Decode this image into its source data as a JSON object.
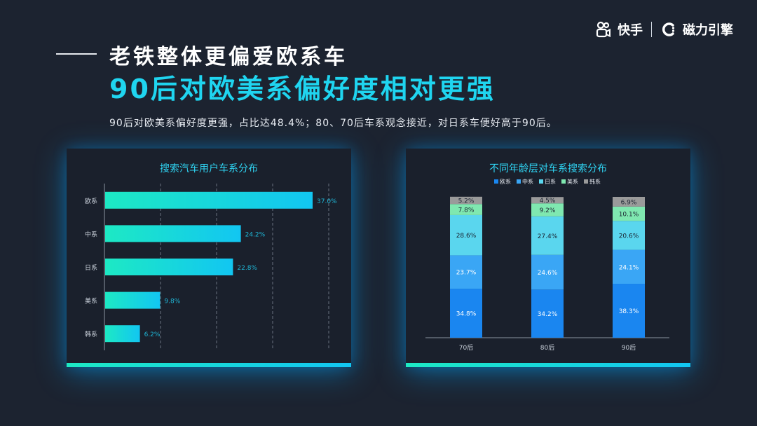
{
  "brand": {
    "kuaishou": "快手",
    "engine": "磁力引擎"
  },
  "header": {
    "title_line1": "老铁整体更偏爱欧系车",
    "title_line2": "90后对欧美系偏好度相对更强",
    "subtitle": "90后对欧美系偏好度更强，占比达48.4%；80、70后车系观念接近，对日系车便好高于90后。"
  },
  "colors": {
    "accent": "#1fd5f0",
    "bar_start": "#1de9c4",
    "bar_end": "#12c6f2"
  },
  "chart_data": [
    {
      "type": "bar",
      "orientation": "horizontal",
      "title": "搜索汽车用户车系分布",
      "categories": [
        "欧系",
        "中系",
        "日系",
        "美系",
        "韩系"
      ],
      "values": [
        37.0,
        24.2,
        22.8,
        9.8,
        6.2
      ],
      "value_labels": [
        "37.0%",
        "24.2%",
        "22.8%",
        "9.8%",
        "6.2%"
      ],
      "xlim": [
        0,
        40
      ],
      "grid": true
    },
    {
      "type": "bar",
      "stacked": true,
      "title": "不同年龄层对车系搜索分布",
      "categories": [
        "70后",
        "80后",
        "90后"
      ],
      "legend_position": "top",
      "series": [
        {
          "name": "欧系",
          "color": "#1a86f0",
          "values": [
            34.8,
            34.2,
            38.3
          ],
          "labels": [
            "34.8%",
            "34.2%",
            "38.3%"
          ]
        },
        {
          "name": "中系",
          "color": "#3aa6f5",
          "values": [
            23.7,
            24.6,
            24.1
          ],
          "labels": [
            "23.7%",
            "24.6%",
            "24.1%"
          ]
        },
        {
          "name": "日系",
          "color": "#5ad6ee",
          "values": [
            28.6,
            27.4,
            20.6
          ],
          "labels": [
            "28.6%",
            "27.4%",
            "20.6%"
          ]
        },
        {
          "name": "美系",
          "color": "#7fe8b0",
          "values": [
            7.8,
            9.2,
            10.1
          ],
          "labels": [
            "7.8%",
            "9.2%",
            "10.1%"
          ]
        },
        {
          "name": "韩系",
          "color": "#9a9a9a",
          "values": [
            5.2,
            4.5,
            6.9
          ],
          "labels": [
            "5.2%",
            "4.5%",
            "6.9%"
          ]
        }
      ],
      "ylim": [
        0,
        100
      ]
    }
  ]
}
